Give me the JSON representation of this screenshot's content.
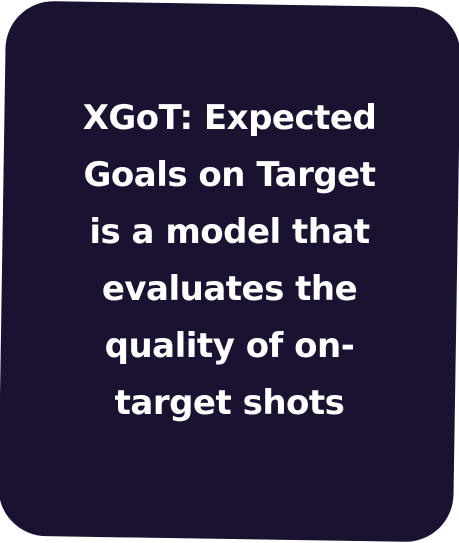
{
  "card": {
    "background_color": "#1b1131",
    "text_color": "#ffffff",
    "lines": [
      "XGoT: Expected",
      "Goals on Target",
      "is a model that",
      "evaluates the",
      "quality of on-",
      "target shots"
    ]
  }
}
